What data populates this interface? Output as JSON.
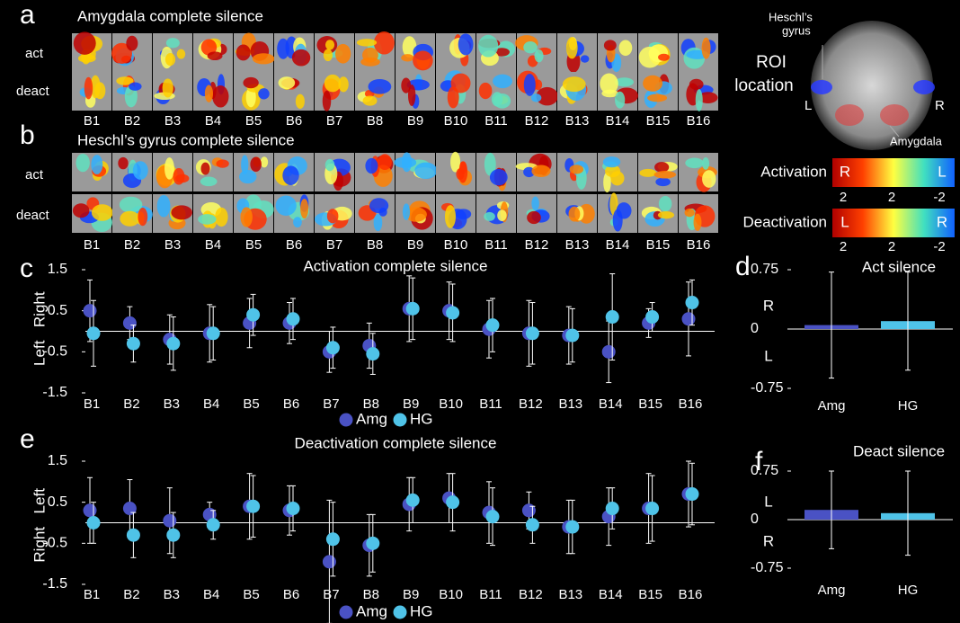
{
  "panel_a": {
    "letter": "a",
    "title": "Amygdala complete silence",
    "rows": [
      "act",
      "deact"
    ]
  },
  "panel_b": {
    "letter": "b",
    "title": "Heschl’s gyrus complete silence",
    "rows": [
      "act",
      "deact"
    ]
  },
  "blocks": [
    "B1",
    "B2",
    "B3",
    "B4",
    "B5",
    "B6",
    "B7",
    "B8",
    "B9",
    "B10",
    "B11",
    "B12",
    "B13",
    "B14",
    "B15",
    "B16"
  ],
  "roi": {
    "title": [
      "ROI",
      "location"
    ],
    "heschl": [
      "Heschl’s",
      "gyrus"
    ],
    "amygdala": "Amygdala",
    "left": "L",
    "right": "R"
  },
  "colorbars": [
    {
      "label": "Activation",
      "start": "R",
      "end": "L",
      "ticks": [
        "2",
        "2",
        "-2"
      ]
    },
    {
      "label": "Deactivation",
      "start": "L",
      "end": "R",
      "ticks": [
        "2",
        "2",
        "-2"
      ]
    }
  ],
  "chart_data": [
    {
      "type": "scatter",
      "letter": "c",
      "title": "Activation complete silence",
      "y_side_labels": [
        "Right",
        "Left"
      ],
      "categories": [
        "B1",
        "B2",
        "B3",
        "B4",
        "B5",
        "B6",
        "B7",
        "B8",
        "B9",
        "B10",
        "B11",
        "B12",
        "B13",
        "B14",
        "B15",
        "B16"
      ],
      "series": [
        {
          "name": "Amg",
          "color": "#4a52c4",
          "values": [
            0.5,
            0.2,
            -0.2,
            -0.05,
            0.2,
            0.2,
            -0.5,
            -0.35,
            0.55,
            0.5,
            0.05,
            -0.05,
            -0.1,
            -0.5,
            0.2,
            0.3
          ],
          "errors": [
            0.75,
            0.4,
            0.6,
            0.7,
            0.6,
            0.5,
            0.5,
            0.55,
            0.8,
            0.7,
            0.7,
            0.8,
            0.7,
            0.75,
            0.35,
            0.9
          ]
        },
        {
          "name": "HG",
          "color": "#4fc3e8",
          "values": [
            -0.05,
            -0.3,
            -0.3,
            -0.05,
            0.4,
            0.3,
            -0.4,
            -0.55,
            0.55,
            0.45,
            0.15,
            -0.05,
            -0.1,
            0.35,
            0.35,
            0.7
          ],
          "errors": [
            0.8,
            0.45,
            0.65,
            0.65,
            0.5,
            0.5,
            0.5,
            0.5,
            0.75,
            0.7,
            0.65,
            0.75,
            0.65,
            1.05,
            0.35,
            0.55
          ]
        }
      ],
      "ylim": [
        -1.5,
        1.5
      ],
      "yticks": [
        -1.5,
        -0.5,
        0.5,
        1.5
      ],
      "legend": "bottom"
    },
    {
      "type": "bar",
      "letter": "d",
      "title": "Act silence",
      "annotations": [
        "R",
        "L"
      ],
      "categories": [
        "Amg",
        "HG"
      ],
      "series": [
        {
          "name": "Amg",
          "color": "#4a52c4",
          "values": [
            0.05,
            0.1
          ],
          "errors": [
            0.67,
            0.62
          ],
          "colors": [
            "#4a52c4",
            "#4fc3e8"
          ]
        }
      ],
      "ylim": [
        -0.75,
        0.75
      ],
      "yticks": [
        -0.75,
        0,
        0.75
      ]
    },
    {
      "type": "scatter",
      "letter": "e",
      "title": "Deactivation complete silence",
      "y_side_labels": [
        "Left",
        "Right"
      ],
      "categories": [
        "B1",
        "B2",
        "B3",
        "B4",
        "B5",
        "B6",
        "B7",
        "B8",
        "B9",
        "B10",
        "B11",
        "B12",
        "B13",
        "B14",
        "B15",
        "B16"
      ],
      "series": [
        {
          "name": "Amg",
          "color": "#4a52c4",
          "values": [
            0.3,
            0.35,
            0.05,
            0.2,
            0.4,
            0.3,
            -0.95,
            -0.55,
            0.45,
            0.6,
            0.25,
            0.3,
            -0.1,
            0.15,
            0.35,
            0.7
          ],
          "errors": [
            0.8,
            0.7,
            0.8,
            0.3,
            0.8,
            0.6,
            1.5,
            0.75,
            0.65,
            0.6,
            0.75,
            0.45,
            0.65,
            0.7,
            0.85,
            0.8
          ]
        },
        {
          "name": "HG",
          "color": "#4fc3e8",
          "values": [
            0.0,
            -0.3,
            -0.3,
            -0.05,
            0.4,
            0.35,
            -0.4,
            -0.5,
            0.55,
            0.5,
            0.15,
            -0.05,
            -0.1,
            0.35,
            0.35,
            0.7
          ],
          "errors": [
            0.5,
            0.55,
            0.55,
            0.35,
            0.75,
            0.55,
            0.9,
            0.7,
            0.55,
            0.7,
            0.7,
            0.45,
            0.65,
            0.5,
            0.8,
            0.75
          ]
        }
      ],
      "ylim": [
        -1.5,
        1.5
      ],
      "yticks": [
        -1.5,
        -0.5,
        0.5,
        1.5
      ],
      "legend": "bottom"
    },
    {
      "type": "bar",
      "letter": "f",
      "title": "Deact silence",
      "annotations": [
        "L",
        "R"
      ],
      "categories": [
        "Amg",
        "HG"
      ],
      "series": [
        {
          "name": "Amg",
          "color": "#4a52c4",
          "values": [
            0.15,
            0.1
          ],
          "errors": [
            0.6,
            0.65
          ],
          "colors": [
            "#4a52c4",
            "#4fc3e8"
          ]
        }
      ],
      "ylim": [
        -0.75,
        0.75
      ],
      "yticks": [
        -0.75,
        0,
        0.75
      ]
    }
  ]
}
